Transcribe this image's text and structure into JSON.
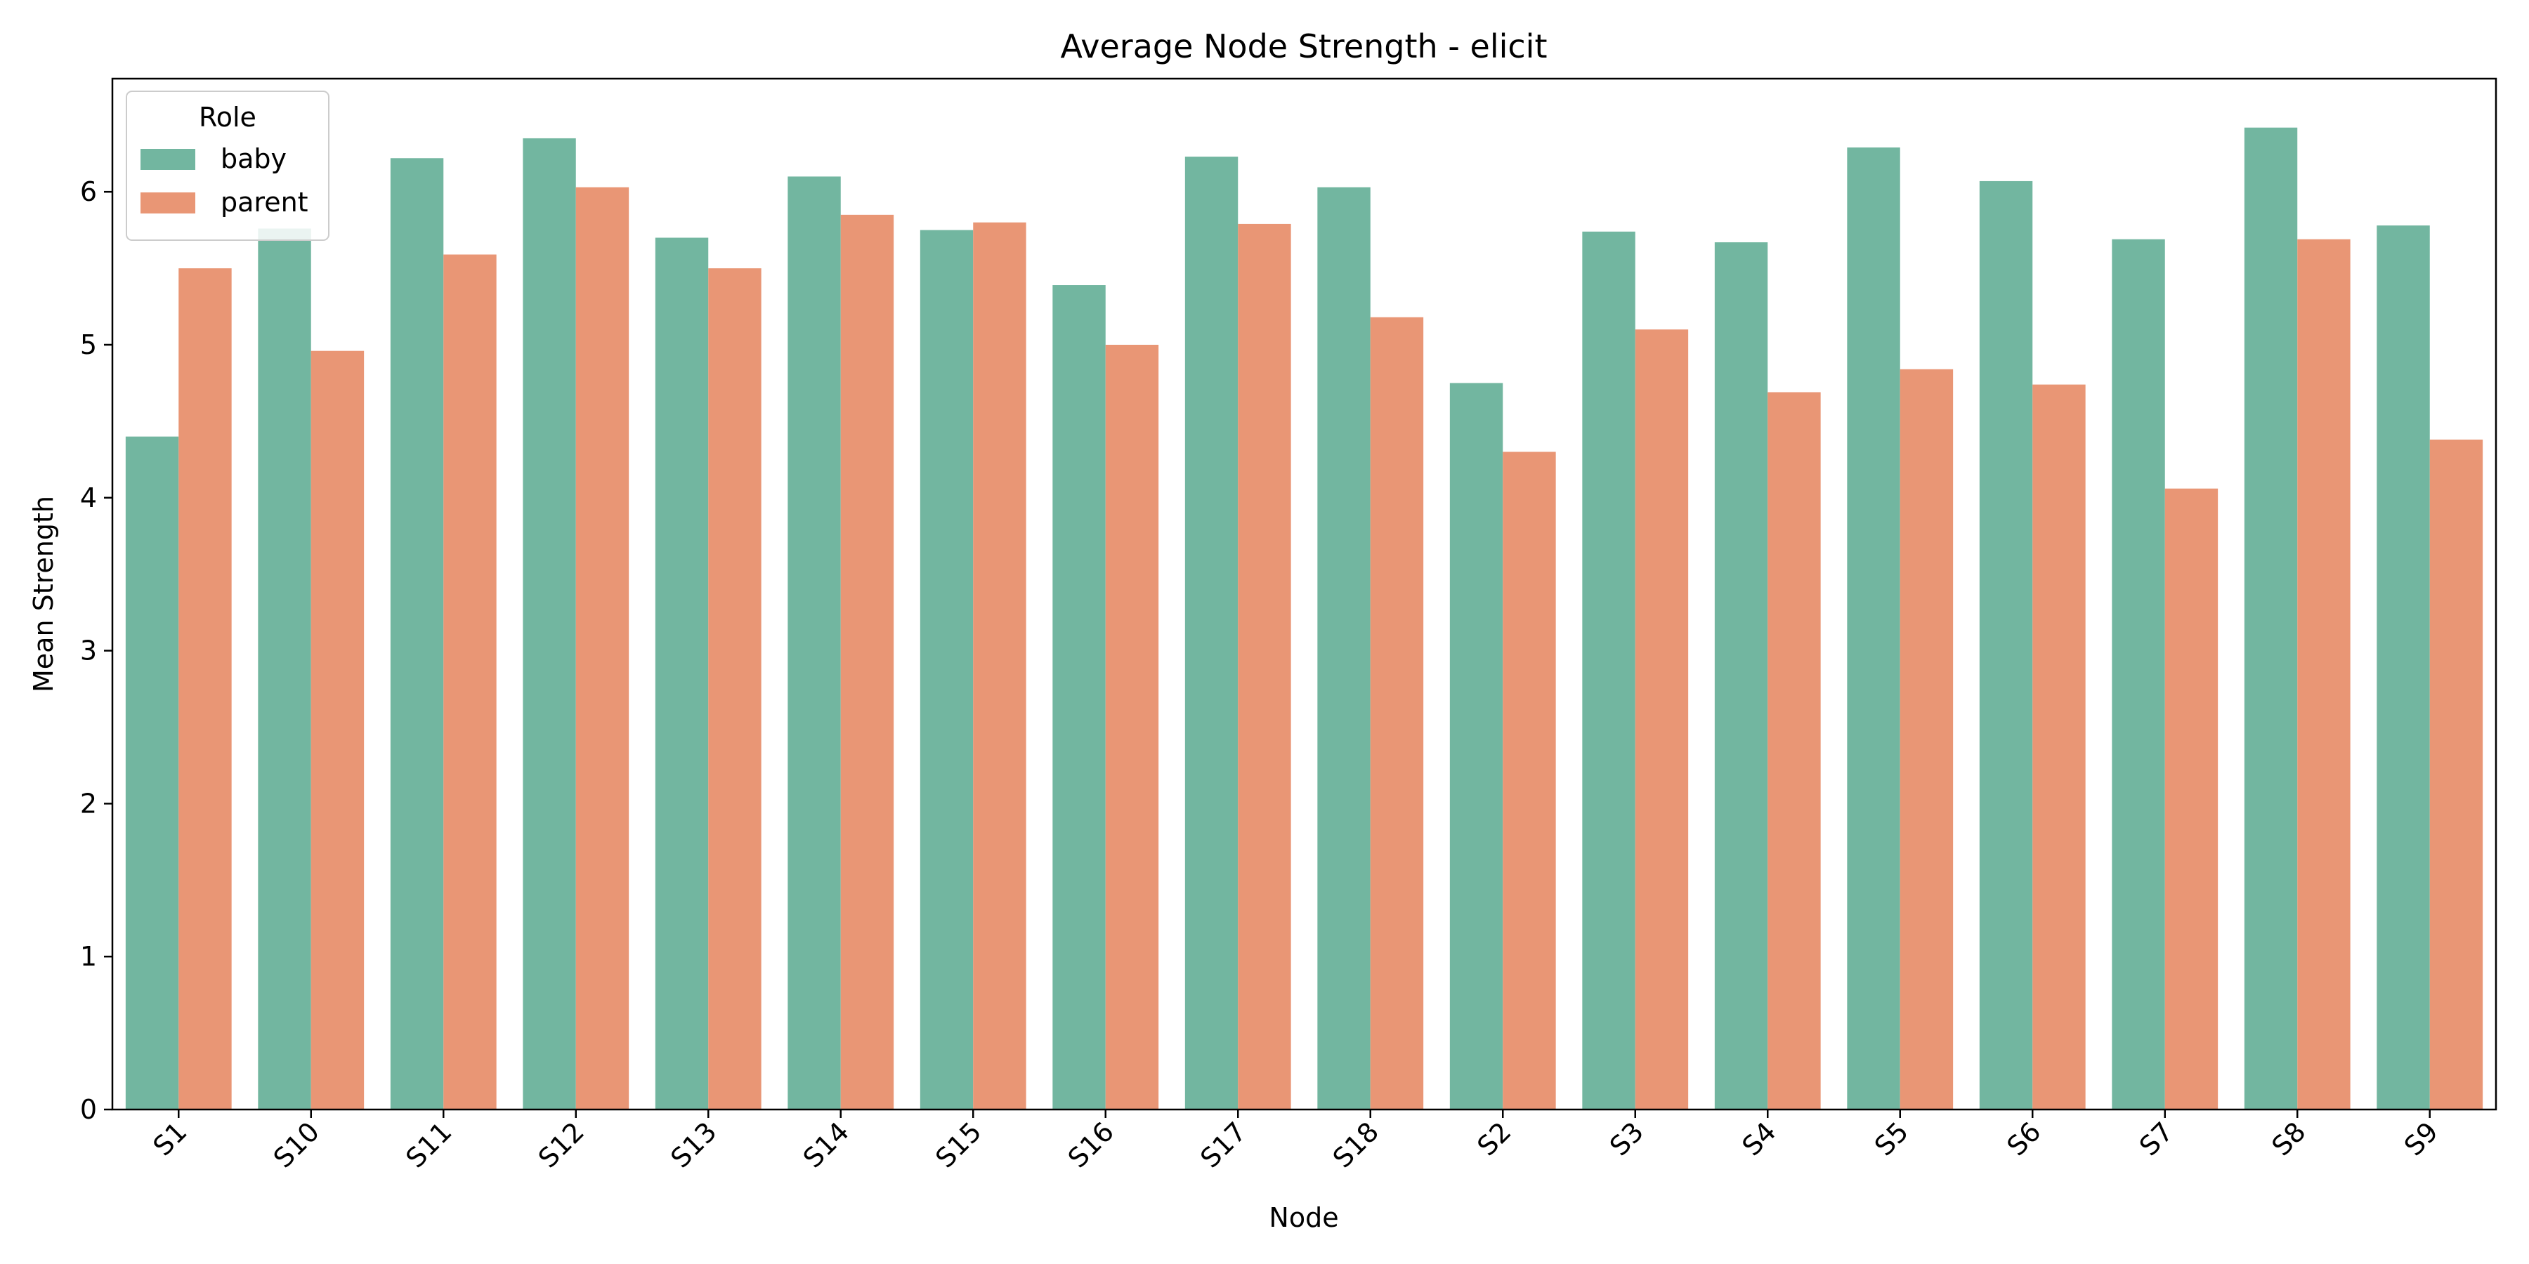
{
  "chart_data": {
    "type": "bar",
    "title": "Average Node Strength - elicit",
    "xlabel": "Node",
    "ylabel": "Mean Strength",
    "categories": [
      "S1",
      "S10",
      "S11",
      "S12",
      "S13",
      "S14",
      "S15",
      "S16",
      "S17",
      "S18",
      "S2",
      "S3",
      "S4",
      "S5",
      "S6",
      "S7",
      "S8",
      "S9"
    ],
    "series": [
      {
        "name": "baby",
        "color": "#72b6a0",
        "values": [
          4.4,
          5.76,
          6.22,
          6.35,
          5.7,
          6.1,
          5.75,
          5.39,
          6.23,
          6.03,
          4.75,
          5.74,
          5.67,
          6.29,
          6.07,
          5.69,
          6.42,
          5.78
        ]
      },
      {
        "name": "parent",
        "color": "#e99675",
        "values": [
          5.5,
          4.96,
          5.59,
          6.03,
          5.5,
          5.85,
          5.8,
          5.0,
          5.79,
          5.18,
          4.3,
          5.1,
          4.69,
          4.84,
          4.74,
          4.06,
          5.69,
          4.38
        ]
      }
    ],
    "ylim": [
      0,
      6.74
    ],
    "yticks": [
      0,
      1,
      2,
      3,
      4,
      5,
      6
    ],
    "grid": false,
    "legend": {
      "title": "Role",
      "position": "top-left"
    }
  }
}
